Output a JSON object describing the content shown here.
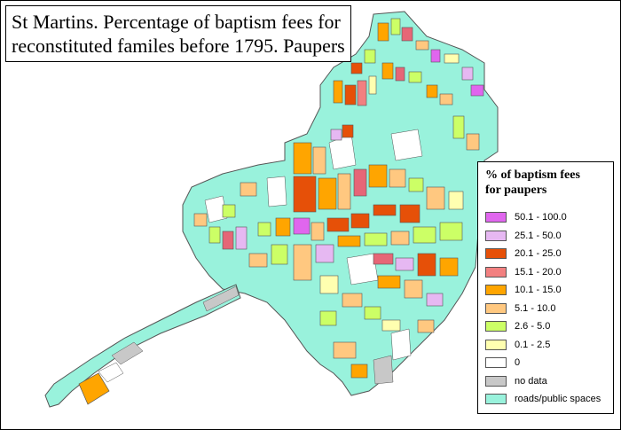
{
  "title": {
    "line1": "St Martins. Percentage of baptism fees for",
    "line2": "reconstituted familes before 1795. Paupers"
  },
  "legend": {
    "title_line1": "% of baptism fees",
    "title_line2": "for paupers",
    "items": [
      {
        "label": "50.1 - 100.0",
        "color": "#e066ee"
      },
      {
        "label": "25.1 - 50.0",
        "color": "#e6b8f2"
      },
      {
        "label": "20.1 - 25.0",
        "color": "#e65008"
      },
      {
        "label": "15.1 - 20.0",
        "color": "#f28080"
      },
      {
        "label": "10.1 - 15.0",
        "color": "#ffa500"
      },
      {
        "label": "5.1 - 10.0",
        "color": "#ffc880"
      },
      {
        "label": "2.6 - 5.0",
        "color": "#ccff66"
      },
      {
        "label": "0.1 - 2.5",
        "color": "#ffffb0"
      },
      {
        "label": "0",
        "color": "#ffffff"
      },
      {
        "label": "no data",
        "color": "#c8c8c8"
      },
      {
        "label": "roads/public spaces",
        "color": "#99f2dc"
      }
    ]
  },
  "map": {
    "road_color": "#99f2dc",
    "outline_color": "#555555"
  }
}
